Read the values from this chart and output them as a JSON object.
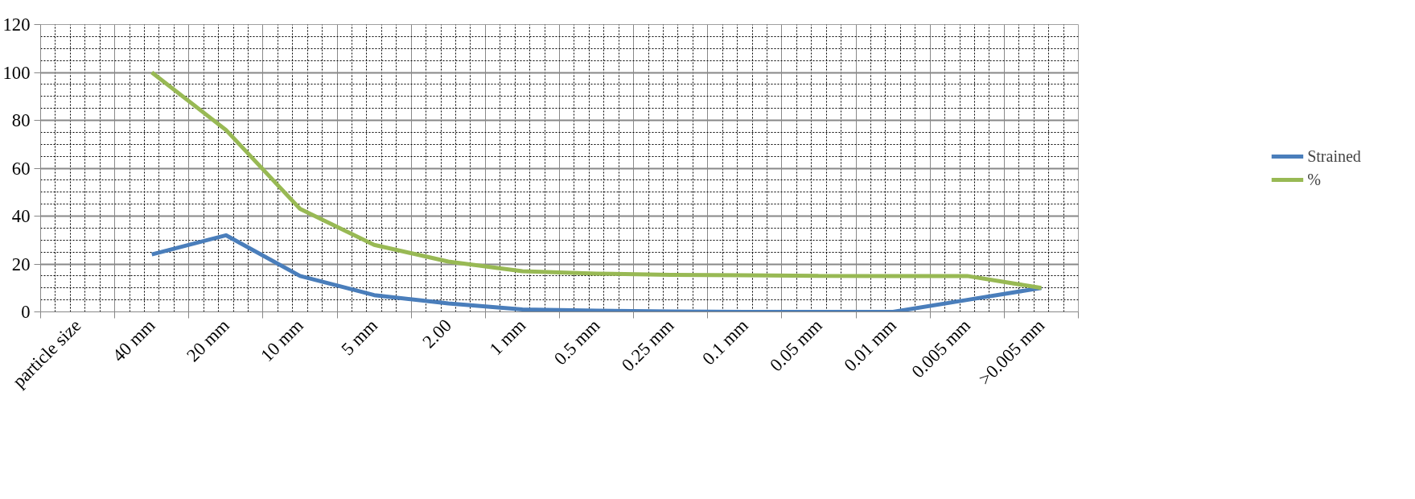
{
  "chart_data": {
    "type": "line",
    "categories": [
      "particle size",
      "40 mm",
      "20 mm",
      "10 mm",
      "5 mm",
      "2.00",
      "1 mm",
      "0.5 mm",
      "0.25 mm",
      "0.1 mm",
      "0.05 mm",
      "0.01 mm",
      "0.005 mm",
      ">0.005 mm"
    ],
    "series": [
      {
        "name": "Strained",
        "color": "#4a7ebb",
        "values": [
          null,
          24,
          32,
          15,
          7,
          3.5,
          1,
          0.5,
          0.2,
          0,
          0,
          0,
          5,
          10
        ]
      },
      {
        "name": "%",
        "color": "#98b954",
        "values": [
          null,
          100,
          76,
          43,
          28,
          21,
          17,
          16,
          15.5,
          15.3,
          15,
          15,
          15,
          10
        ]
      }
    ],
    "ylim": [
      0,
      120
    ],
    "yticks": [
      0,
      20,
      40,
      60,
      80,
      100,
      120
    ],
    "grid": true,
    "legend": "right",
    "marker": "none",
    "line_style": "solid"
  }
}
